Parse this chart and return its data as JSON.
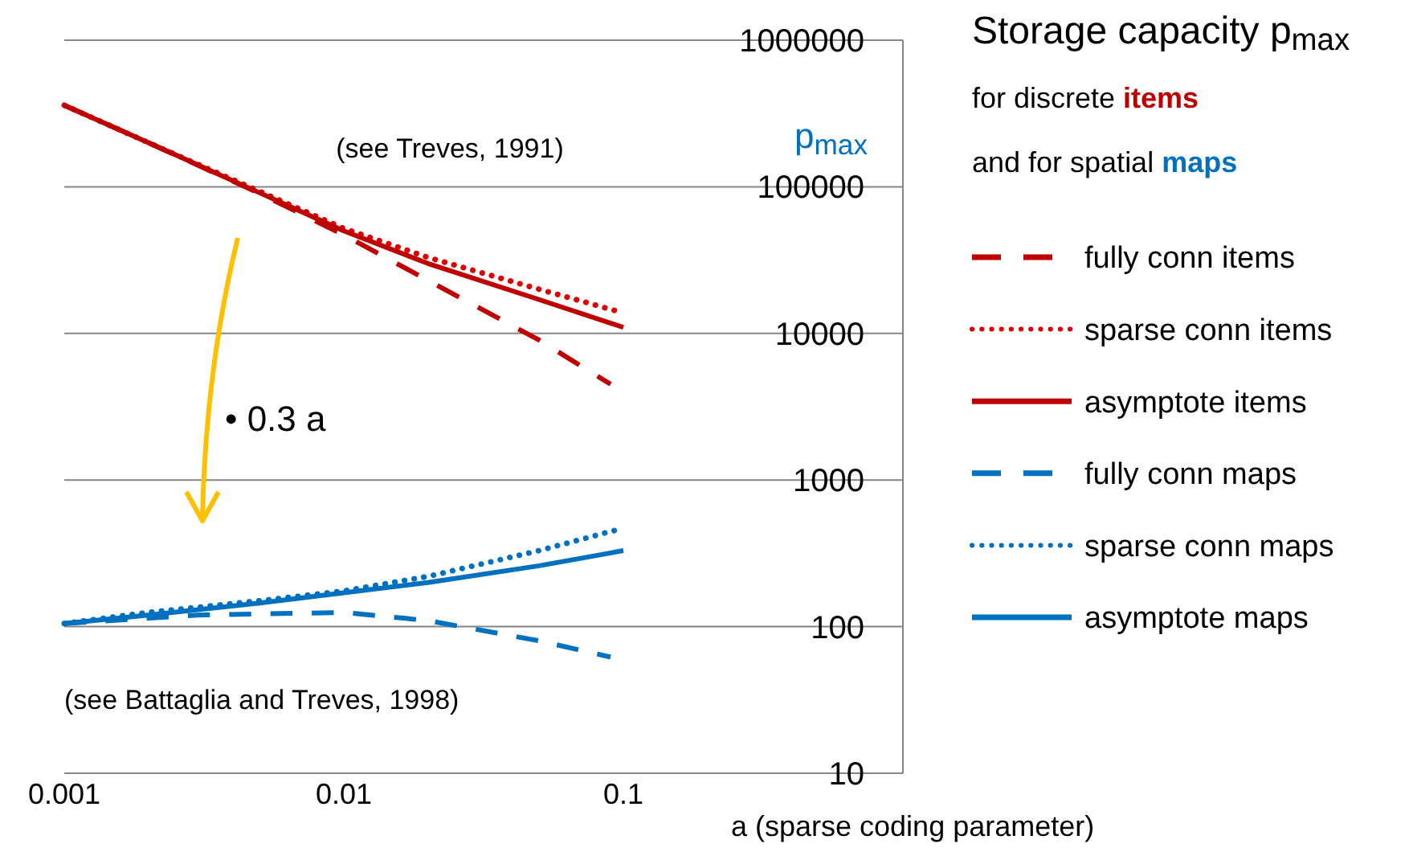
{
  "chart_data": {
    "type": "line",
    "title": "Storage capacity p$_{max}$",
    "subtitle": "for discrete items\nand for spatial maps",
    "xlabel": "a (sparse coding parameter)",
    "ylabel": "p$_{max}$",
    "log": "xy",
    "grid": "y",
    "legend": "right",
    "xlim": [
      0.001,
      1
    ],
    "xticks": [
      0.001,
      0.01,
      0.1
    ],
    "ylim": [
      10,
      1000000
    ],
    "yticks": [
      10,
      100,
      1000,
      10000,
      100000,
      1000000
    ],
    "annotations": [
      "(see Treves, 1991)",
      "(see Battaglia and Treves, 1998)",
      "• 0.3 a"
    ],
    "series": [
      {
        "name": "fully conn items",
        "color": "#c00000",
        "line_style": "dashed",
        "x": [
          0.001,
          0.002,
          0.005,
          0.01,
          0.02,
          0.05,
          0.09
        ],
        "values": [
          360000,
          200000,
          90000,
          47000,
          23000,
          9000,
          4500
        ]
      },
      {
        "name": "sparse conn items",
        "color": "#e00000",
        "line_style": "dotted",
        "x": [
          0.001,
          0.002,
          0.005,
          0.01,
          0.02,
          0.05,
          0.1
        ],
        "values": [
          360000,
          200000,
          93000,
          52000,
          33000,
          20000,
          13800
        ]
      },
      {
        "name": "asymptote items",
        "color": "#c00000",
        "line_style": "solid",
        "x": [
          0.001,
          0.002,
          0.005,
          0.01,
          0.02,
          0.05,
          0.1
        ],
        "values": [
          360000,
          200000,
          91000,
          50000,
          30000,
          17000,
          11000
        ]
      },
      {
        "name": "fully conn maps",
        "color": "#0070c0",
        "line_style": "dashed",
        "x": [
          0.001,
          0.003,
          0.01,
          0.02,
          0.05,
          0.09
        ],
        "values": [
          105,
          120,
          125,
          110,
          80,
          62
        ]
      },
      {
        "name": "sparse conn maps",
        "color": "#0070c0",
        "line_style": "dotted",
        "x": [
          0.001,
          0.002,
          0.005,
          0.01,
          0.02,
          0.05,
          0.1
        ],
        "values": [
          105,
          125,
          150,
          175,
          220,
          330,
          470
        ]
      },
      {
        "name": "asymptote maps",
        "color": "#0070c0",
        "line_style": "solid",
        "x": [
          0.001,
          0.002,
          0.005,
          0.01,
          0.02,
          0.05,
          0.1
        ],
        "values": [
          105,
          120,
          145,
          170,
          200,
          260,
          330
        ]
      }
    ]
  }
}
